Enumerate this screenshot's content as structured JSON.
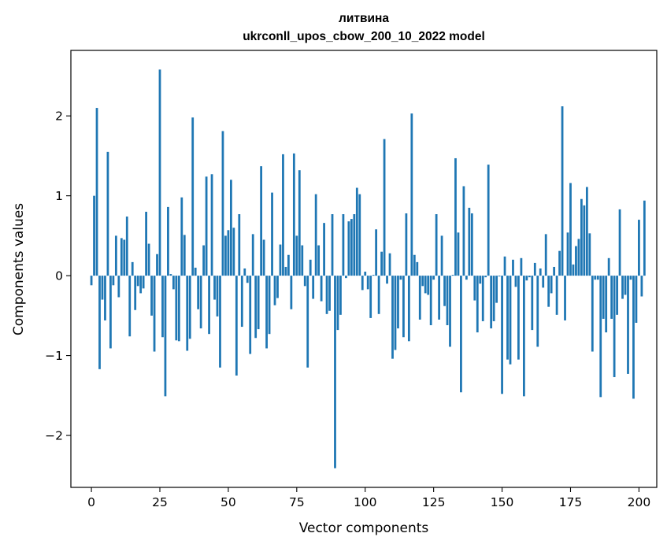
{
  "chart_data": {
    "type": "bar",
    "title": "литвина",
    "subtitle": "ukrconll_upos_cbow_200_10_2022 model",
    "xlabel": "Vector components",
    "ylabel": "Components values",
    "xlim": [
      -7.5,
      206.5
    ],
    "ylim": [
      -2.65,
      2.82
    ],
    "xticks": [
      0,
      25,
      50,
      75,
      100,
      125,
      150,
      175,
      200
    ],
    "yticks": [
      -2,
      -1,
      0,
      1,
      2
    ],
    "ytick_labels": [
      "−2",
      "−1",
      "0",
      "1",
      "2"
    ],
    "bar_color": "#1f77b4",
    "grid": false,
    "values": [
      -0.12,
      1.0,
      2.1,
      -1.17,
      -0.3,
      -0.56,
      1.55,
      -0.91,
      -0.12,
      0.5,
      -0.27,
      0.47,
      0.45,
      0.74,
      -0.76,
      0.17,
      -0.43,
      -0.13,
      -0.22,
      -0.16,
      0.8,
      0.4,
      -0.5,
      -0.95,
      0.27,
      2.58,
      -0.77,
      -1.51,
      0.86,
      0.02,
      -0.17,
      -0.81,
      -0.82,
      0.98,
      0.51,
      -0.94,
      -0.79,
      1.98,
      0.1,
      -0.42,
      -0.66,
      0.38,
      1.24,
      -0.73,
      1.27,
      -0.3,
      -0.51,
      -1.15,
      1.81,
      0.5,
      0.57,
      1.2,
      0.6,
      -1.25,
      0.77,
      -0.64,
      0.09,
      -0.09,
      -0.98,
      0.52,
      -0.78,
      -0.67,
      1.37,
      0.45,
      -0.91,
      -0.73,
      1.04,
      -0.37,
      -0.28,
      0.39,
      1.52,
      0.11,
      0.26,
      -0.42,
      1.53,
      0.5,
      1.32,
      0.38,
      -0.13,
      -1.15,
      0.2,
      -0.29,
      1.02,
      0.38,
      -0.32,
      0.66,
      -0.48,
      -0.44,
      0.77,
      -2.41,
      -0.68,
      -0.49,
      0.77,
      -0.03,
      0.68,
      0.71,
      0.77,
      1.1,
      1.02,
      -0.18,
      0.05,
      -0.17,
      -0.53,
      0.01,
      0.58,
      -0.48,
      0.3,
      1.71,
      -0.1,
      0.28,
      -1.04,
      -0.93,
      -0.66,
      -0.05,
      -0.77,
      0.78,
      -0.82,
      2.03,
      0.26,
      0.17,
      -0.55,
      -0.13,
      -0.22,
      -0.24,
      -0.62,
      -0.05,
      0.77,
      -0.55,
      0.5,
      -0.38,
      -0.62,
      -0.89,
      0.01,
      1.47,
      0.54,
      -1.46,
      1.12,
      -0.05,
      0.85,
      0.78,
      -0.31,
      -0.71,
      -0.1,
      -0.57,
      -0.02,
      1.39,
      -0.66,
      -0.57,
      -0.34,
      -0.01,
      -1.48,
      0.24,
      -1.05,
      -1.11,
      0.2,
      -0.14,
      -1.05,
      0.22,
      -1.51,
      -0.06,
      -0.02,
      -0.68,
      0.16,
      -0.89,
      0.09,
      -0.15,
      0.52,
      -0.39,
      -0.22,
      0.11,
      -0.49,
      0.31,
      2.12,
      -0.56,
      0.54,
      1.16,
      0.14,
      0.37,
      0.46,
      0.96,
      0.88,
      1.11,
      0.53,
      -0.95,
      -0.05,
      -0.05,
      -1.52,
      -0.54,
      -0.71,
      0.22,
      -0.54,
      -1.27,
      -0.49,
      0.83,
      -0.29,
      -0.24,
      -1.23,
      -0.05,
      -1.54,
      -0.59,
      0.7,
      -0.26,
      0.94
    ]
  }
}
